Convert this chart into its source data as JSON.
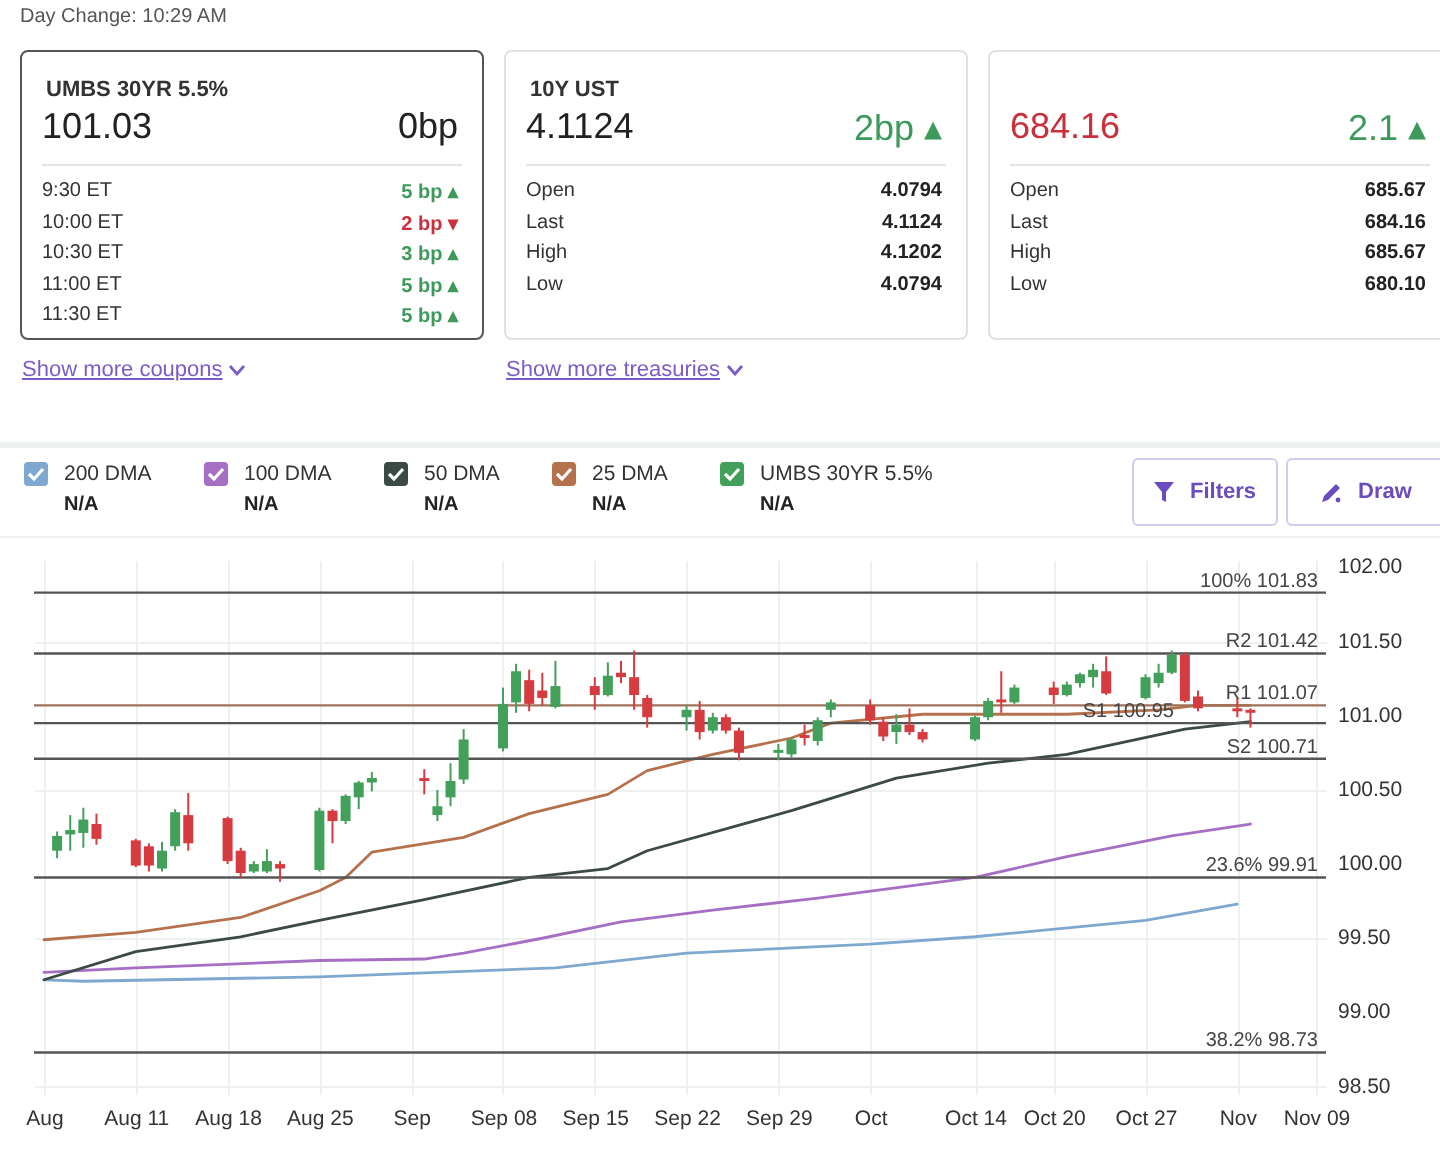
{
  "chart_data": [
    {
      "type": "other",
      "title": "Day Change: 10:29 AM"
    },
    {
      "type": "other",
      "title": "UMBS 30YR 5.5%",
      "subtitle": "Show more coupons",
      "annotations": [
        "101.03",
        "0bp",
        "9:30 ET",
        "5 bp ▴",
        "10:00 ET",
        "2 bp ▾",
        "10:30 ET",
        "3 bp ▴",
        "11:00 ET",
        "5 bp ▴",
        "11:30 ET",
        "5 bp ▴"
      ],
      "colors": [
        "#222222",
        "#222222",
        "#333333",
        "#3d9a5b",
        "#333333",
        "#c9303c",
        "#333333",
        "#3d9a5b",
        "#333333",
        "#3d9a5b",
        "#333333",
        "#3d9a5b"
      ]
    },
    {
      "type": "other",
      "title": "10Y UST",
      "subtitle": "Show more treasuries",
      "annotations": [
        "4.1124",
        "2bp ▴",
        "Open",
        "4.0794",
        "Last",
        "4.1124",
        "High",
        "4.1202",
        "Low",
        "4.0794"
      ],
      "colors": [
        "#222222",
        "#3d9a5b",
        "#333333",
        "#222222",
        "#333333",
        "#222222",
        "#333333",
        "#222222",
        "#333333",
        "#222222"
      ]
    },
    {
      "type": "other",
      "annotations": [
        "684.16",
        "2.1 ▴",
        "Open",
        "685.67",
        "Last",
        "684.16",
        "High",
        "685.67",
        "Low",
        "680.10"
      ],
      "colors": [
        "#c9303c",
        "#3d9a5b",
        "#333333",
        "#222222",
        "#333333",
        "#222222",
        "#333333",
        "#222222",
        "#333333",
        "#222222"
      ]
    },
    {
      "type": "candlestick",
      "legend": "top",
      "grid": true,
      "annotations": [
        "N/A",
        "N/A",
        "N/A",
        "N/A",
        "N/A",
        "Filters",
        "Draw"
      ],
      "xlim": [
        "--08-04",
        "--11-09"
      ],
      "xticks": [
        {
          "value": "--08-04",
          "label": "Aug"
        },
        {
          "value": "--08-11",
          "label": "Aug 11"
        },
        {
          "value": "--08-18",
          "label": "Aug 18"
        },
        {
          "value": "--08-25",
          "label": "Aug 25"
        },
        {
          "value": "--09-01",
          "label": "Sep"
        },
        {
          "value": "--09-08",
          "label": "Sep 08"
        },
        {
          "value": "--09-15",
          "label": "Sep 15"
        },
        {
          "value": "--09-22",
          "label": "Sep 22"
        },
        {
          "value": "--09-29",
          "label": "Sep 29"
        },
        {
          "value": "--10-06",
          "label": "Oct"
        },
        {
          "value": "--10-14",
          "label": "Oct 14"
        },
        {
          "value": "--10-20",
          "label": "Oct 20"
        },
        {
          "value": "--10-27",
          "label": "Oct 27"
        },
        {
          "value": "--11-03",
          "label": "Nov"
        },
        {
          "value": "--11-09",
          "label": "Nov 09"
        }
      ],
      "ylim": [
        98.45,
        102.05
      ],
      "yticks": [
        {
          "value": 98.5,
          "label": "98.50"
        },
        {
          "value": 99,
          "label": "99.00"
        },
        {
          "value": 99.5,
          "label": "99.50"
        },
        {
          "value": 100,
          "label": "100.00"
        },
        {
          "value": 100.5,
          "label": "100.50"
        },
        {
          "value": 101,
          "label": "101.00"
        },
        {
          "value": 101.5,
          "label": "101.50"
        },
        {
          "value": 102,
          "label": "102.00"
        }
      ],
      "ref_lines": [
        {
          "axis": "y",
          "value": 101.83,
          "label": "100% 101.83",
          "color": "#555555"
        },
        {
          "axis": "y",
          "value": 101.42,
          "label": "R2 101.42",
          "color": "#555555"
        },
        {
          "axis": "y",
          "value": 101.07,
          "label": "R1 101.07",
          "color": "#a0725a"
        },
        {
          "axis": "y",
          "value": 100.95,
          "label": "S1 100.95",
          "color": "#555555"
        },
        {
          "axis": "y",
          "value": 100.71,
          "label": "S2 100.71",
          "color": "#555555"
        },
        {
          "axis": "y",
          "value": 99.91,
          "label": "23.6% 99.91",
          "color": "#555555"
        },
        {
          "axis": "y",
          "value": 98.73,
          "label": "38.2% 98.73",
          "color": "#555555"
        }
      ],
      "series": [
        {
          "name": "200 DMA",
          "type": "line",
          "color": "#7fa8d1",
          "x": [
            "--08-04",
            "--08-07",
            "--08-25",
            "--09-12",
            "--09-22",
            "--10-06",
            "--10-14",
            "--10-27",
            "--11-03"
          ],
          "values": [
            99.22,
            99.21,
            99.24,
            99.3,
            99.4,
            99.46,
            99.51,
            99.62,
            99.73
          ]
        },
        {
          "name": "100 DMA",
          "type": "line",
          "color": "#a66fc4",
          "x": [
            "--08-04",
            "--08-11",
            "--08-25",
            "--09-02",
            "--09-05",
            "--09-11",
            "--09-17",
            "--09-24",
            "--10-02",
            "--10-14",
            "--10-21",
            "--10-29",
            "--11-04"
          ],
          "values": [
            99.27,
            99.3,
            99.35,
            99.36,
            99.4,
            99.5,
            99.61,
            99.69,
            99.77,
            99.91,
            100.05,
            100.19,
            100.27
          ]
        },
        {
          "name": "50 DMA",
          "type": "line",
          "color": "#3b4a45",
          "x": [
            "--08-04",
            "--08-11",
            "--08-19",
            "--08-25",
            "--09-02",
            "--09-10",
            "--09-16",
            "--09-19",
            "--09-30",
            "--10-08",
            "--10-15",
            "--10-21",
            "--10-30",
            "--11-04"
          ],
          "values": [
            99.22,
            99.41,
            99.51,
            99.62,
            99.76,
            99.91,
            99.97,
            100.09,
            100.36,
            100.58,
            100.68,
            100.74,
            100.91,
            100.96
          ]
        },
        {
          "name": "25 DMA",
          "type": "line",
          "color": "#b5714b",
          "x": [
            "--08-04",
            "--08-11",
            "--08-19",
            "--08-25",
            "--08-27",
            "--08-29",
            "--09-05",
            "--09-10",
            "--09-16",
            "--09-19",
            "--09-24",
            "--09-30",
            "--10-03",
            "--10-10",
            "--10-21",
            "--10-28",
            "--10-31",
            "--11-04"
          ],
          "values": [
            99.49,
            99.54,
            99.64,
            99.82,
            99.91,
            100.08,
            100.18,
            100.34,
            100.47,
            100.63,
            100.74,
            100.85,
            100.95,
            101.01,
            101.01,
            101.04,
            101.07,
            101.07
          ]
        },
        {
          "name": "UMBS 30YR 5.5%",
          "type": "candlestick",
          "color": "#43a05a",
          "x": [
            "--08-05",
            "--08-06",
            "--08-07",
            "--08-08",
            "--08-11",
            "--08-12",
            "--08-13",
            "--08-14",
            "--08-15",
            "--08-18",
            "--08-19",
            "--08-20",
            "--08-21",
            "--08-22",
            "--08-25",
            "--08-26",
            "--08-27",
            "--08-28",
            "--08-29",
            "--09-02",
            "--09-03",
            "--09-04",
            "--09-05",
            "--09-08",
            "--09-09",
            "--09-10",
            "--09-11",
            "--09-12",
            "--09-15",
            "--09-16",
            "--09-17",
            "--09-18",
            "--09-19",
            "--09-22",
            "--09-23",
            "--09-24",
            "--09-25",
            "--09-26",
            "--09-29",
            "--09-30",
            "--10-01",
            "--10-02",
            "--10-03",
            "--10-06",
            "--10-07",
            "--10-08",
            "--10-09",
            "--10-10",
            "--10-14",
            "--10-15",
            "--10-16",
            "--10-17",
            "--10-20",
            "--10-21",
            "--10-22",
            "--10-23",
            "--10-24",
            "--10-27",
            "--10-28",
            "--10-29",
            "--10-30",
            "--10-31",
            "--11-03",
            "--11-04"
          ],
          "ohlc": [
            [
              100.09,
              100.22,
              100.04,
              100.19
            ],
            [
              100.2,
              100.33,
              100.09,
              100.23
            ],
            [
              100.21,
              100.38,
              100.11,
              100.3
            ],
            [
              100.27,
              100.34,
              100.13,
              100.17
            ],
            [
              100.16,
              100.17,
              99.98,
              99.99
            ],
            [
              100.12,
              100.14,
              99.95,
              99.99
            ],
            [
              99.97,
              100.15,
              99.95,
              100.09
            ],
            [
              100.12,
              100.37,
              100.09,
              100.35
            ],
            [
              100.33,
              100.48,
              100.09,
              100.14
            ],
            [
              100.31,
              100.32,
              100.0,
              100.02
            ],
            [
              100.09,
              100.11,
              99.91,
              99.94
            ],
            [
              99.95,
              100.02,
              99.94,
              100.0
            ],
            [
              99.95,
              100.1,
              99.94,
              100.02
            ],
            [
              100.0,
              100.02,
              99.88,
              99.97
            ],
            [
              99.96,
              100.38,
              99.95,
              100.36
            ],
            [
              100.36,
              100.37,
              100.14,
              100.29
            ],
            [
              100.29,
              100.47,
              100.27,
              100.46
            ],
            [
              100.45,
              100.56,
              100.37,
              100.55
            ],
            [
              100.55,
              100.62,
              100.49,
              100.58
            ],
            [
              100.58,
              100.64,
              100.47,
              100.56
            ],
            [
              100.33,
              100.5,
              100.29,
              100.39
            ],
            [
              100.45,
              100.68,
              100.39,
              100.56
            ],
            [
              100.57,
              100.91,
              100.54,
              100.84
            ],
            [
              100.78,
              101.19,
              100.76,
              101.08
            ],
            [
              101.09,
              101.35,
              101.02,
              101.3
            ],
            [
              101.24,
              101.31,
              101.03,
              101.08
            ],
            [
              101.17,
              101.29,
              101.07,
              101.12
            ],
            [
              101.06,
              101.37,
              101.05,
              101.2
            ],
            [
              101.2,
              101.26,
              101.04,
              101.14
            ],
            [
              101.14,
              101.36,
              101.13,
              101.27
            ],
            [
              101.29,
              101.37,
              101.22,
              101.26
            ],
            [
              101.26,
              101.44,
              101.04,
              101.14
            ],
            [
              101.12,
              101.14,
              100.92,
              100.99
            ],
            [
              100.99,
              101.07,
              100.9,
              101.04
            ],
            [
              101.04,
              101.1,
              100.84,
              100.89
            ],
            [
              100.9,
              101.02,
              100.88,
              100.99
            ],
            [
              100.99,
              101.01,
              100.88,
              100.9
            ],
            [
              100.9,
              100.92,
              100.7,
              100.75
            ],
            [
              100.75,
              100.81,
              100.7,
              100.77
            ],
            [
              100.74,
              100.85,
              100.72,
              100.84
            ],
            [
              100.87,
              100.94,
              100.8,
              100.85
            ],
            [
              100.83,
              100.99,
              100.8,
              100.97
            ],
            [
              101.04,
              101.11,
              100.99,
              101.09
            ],
            [
              101.07,
              101.11,
              100.94,
              100.97
            ],
            [
              100.96,
              100.99,
              100.83,
              100.86
            ],
            [
              100.89,
              101.01,
              100.81,
              100.94
            ],
            [
              100.94,
              101.05,
              100.87,
              100.89
            ],
            [
              100.89,
              100.91,
              100.82,
              100.84
            ],
            [
              100.84,
              101.0,
              100.83,
              100.99
            ],
            [
              100.99,
              101.12,
              100.97,
              101.1
            ],
            [
              101.11,
              101.3,
              101.02,
              101.09
            ],
            [
              101.09,
              101.21,
              101.08,
              101.19
            ],
            [
              101.19,
              101.23,
              101.08,
              101.14
            ],
            [
              101.14,
              101.23,
              101.13,
              101.21
            ],
            [
              101.22,
              101.29,
              101.19,
              101.28
            ],
            [
              101.26,
              101.35,
              101.19,
              101.31
            ],
            [
              101.3,
              101.4,
              101.14,
              101.15
            ],
            [
              101.12,
              101.28,
              101.11,
              101.26
            ],
            [
              101.22,
              101.35,
              101.19,
              101.29
            ],
            [
              101.29,
              101.44,
              101.28,
              101.41
            ],
            [
              101.41,
              101.43,
              101.09,
              101.1
            ],
            [
              101.13,
              101.17,
              101.03,
              101.05
            ],
            [
              101.05,
              101.12,
              100.99,
              101.03
            ],
            [
              101.04,
              101.05,
              100.92,
              101.02
            ]
          ],
          "colors": [
            "#43a05a",
            "#43a05a",
            "#43a05a",
            "#d63b3f",
            "#d63b3f",
            "#d63b3f",
            "#43a05a",
            "#43a05a",
            "#d63b3f",
            "#d63b3f",
            "#d63b3f",
            "#43a05a",
            "#43a05a",
            "#d63b3f",
            "#43a05a",
            "#d63b3f",
            "#43a05a",
            "#43a05a",
            "#43a05a",
            "#d63b3f",
            "#43a05a",
            "#43a05a",
            "#43a05a",
            "#43a05a",
            "#43a05a",
            "#d63b3f",
            "#d63b3f",
            "#43a05a",
            "#d63b3f",
            "#43a05a",
            "#d63b3f",
            "#d63b3f",
            "#d63b3f",
            "#43a05a",
            "#d63b3f",
            "#43a05a",
            "#d63b3f",
            "#d63b3f",
            "#43a05a",
            "#43a05a",
            "#d63b3f",
            "#43a05a",
            "#43a05a",
            "#d63b3f",
            "#d63b3f",
            "#43a05a",
            "#d63b3f",
            "#d63b3f",
            "#43a05a",
            "#43a05a",
            "#d63b3f",
            "#43a05a",
            "#d63b3f",
            "#43a05a",
            "#43a05a",
            "#43a05a",
            "#d63b3f",
            "#43a05a",
            "#43a05a",
            "#43a05a",
            "#d63b3f",
            "#d63b3f",
            "#d63b3f",
            "#d63b3f"
          ]
        }
      ]
    }
  ]
}
